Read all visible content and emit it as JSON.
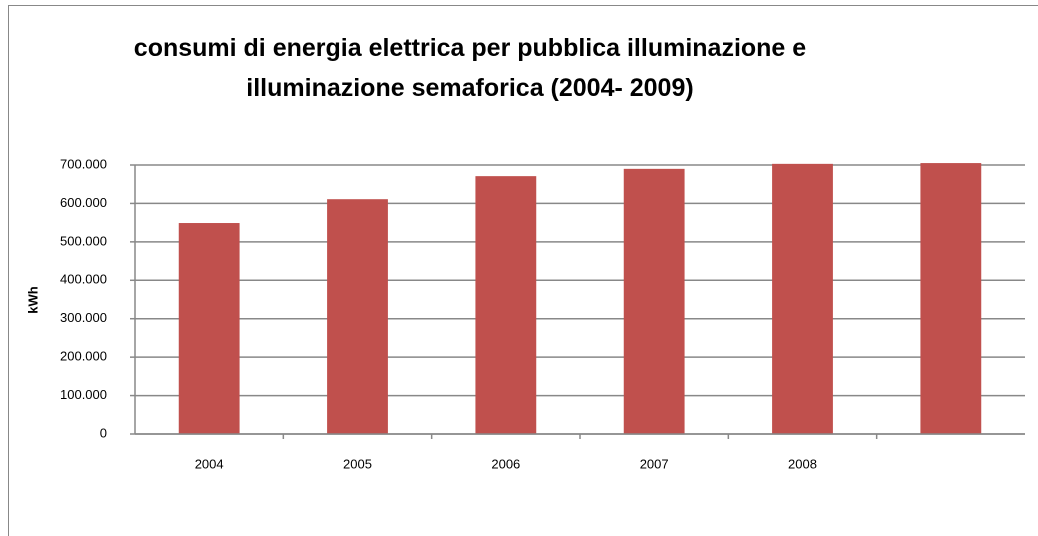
{
  "chart_data": {
    "type": "bar",
    "title": "consumi di energia elettrica per pubblica illuminazione e illuminazione semaforica (2004- 2009)",
    "y_label": "kWh",
    "categories": [
      "2004",
      "2005",
      "2006",
      "2007",
      "2008",
      null
    ],
    "values": [
      549000,
      611000,
      671000,
      690000,
      703000,
      705000
    ],
    "color": "#c0504d",
    "ylim": [
      0,
      700000
    ],
    "yticks": [
      0,
      {
        "value": 100000,
        "label": "100.000"
      },
      {
        "value": 200000,
        "label": "200.000"
      },
      {
        "value": 300000,
        "label": "300.000"
      },
      {
        "value": 400000,
        "label": "400.000"
      },
      {
        "value": 500000,
        "label": "500.000"
      },
      {
        "value": 600000,
        "label": "600.000"
      },
      {
        "value": 700000,
        "label": "700.000"
      }
    ],
    "grid": true
  }
}
